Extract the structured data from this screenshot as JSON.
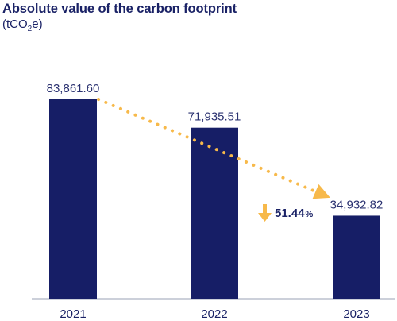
{
  "chart_data": {
    "type": "bar",
    "title": "Absolute value of the carbon footprint",
    "unit_prefix": "(tCO",
    "unit_sub": "2",
    "unit_suffix": "e)",
    "categories": [
      "2021",
      "2022",
      "2023"
    ],
    "values": [
      83861.6,
      71935.51,
      34932.82
    ],
    "value_labels": [
      "83,861.60",
      "71,935.51",
      "34,932.82"
    ],
    "ylim": [
      0,
      90000
    ],
    "grid": false,
    "legend": "none",
    "annotation": {
      "value": "51.44",
      "unit": "%",
      "direction": "down"
    },
    "colors": {
      "bar": "#161e66",
      "trend": "#f7b94a",
      "text": "#1a2266"
    }
  }
}
